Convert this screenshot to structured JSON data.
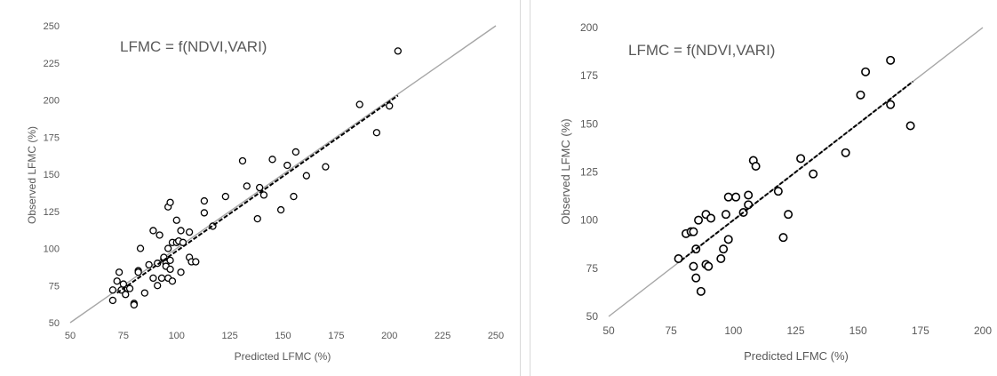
{
  "chart_data": [
    {
      "type": "scatter",
      "annotation": "LFMC = f(NDVI,VARI)",
      "xlabel": "Predicted LFMC (%)",
      "ylabel": "Observed LFMC (%)",
      "xlim": [
        50,
        250
      ],
      "ylim": [
        50,
        250
      ],
      "xticks": [
        "50",
        "75",
        "100",
        "125",
        "150",
        "175",
        "200",
        "225",
        "250"
      ],
      "yticks": [
        "50",
        "75",
        "100",
        "125",
        "150",
        "175",
        "200",
        "225",
        "250"
      ],
      "grid": false,
      "reference_line": "1:1",
      "trend_line": {
        "x": [
          72,
          204
        ],
        "y": [
          70,
          203
        ]
      },
      "points": [
        [
          70,
          72
        ],
        [
          70,
          65
        ],
        [
          72,
          78
        ],
        [
          73,
          84
        ],
        [
          74,
          72
        ],
        [
          75,
          76
        ],
        [
          76,
          69
        ],
        [
          77,
          73
        ],
        [
          78,
          73
        ],
        [
          80,
          63
        ],
        [
          80,
          62
        ],
        [
          82,
          85
        ],
        [
          82,
          84
        ],
        [
          83,
          100
        ],
        [
          85,
          70
        ],
        [
          87,
          89
        ],
        [
          89,
          112
        ],
        [
          89,
          80
        ],
        [
          91,
          75
        ],
        [
          91,
          90
        ],
        [
          92,
          109
        ],
        [
          93,
          80
        ],
        [
          94,
          93
        ],
        [
          94,
          94
        ],
        [
          95,
          90
        ],
        [
          95,
          88
        ],
        [
          96,
          128
        ],
        [
          96,
          100
        ],
        [
          96,
          80
        ],
        [
          97,
          86
        ],
        [
          97,
          131
        ],
        [
          97,
          92
        ],
        [
          98,
          78
        ],
        [
          98,
          104
        ],
        [
          100,
          119
        ],
        [
          100,
          104
        ],
        [
          101,
          105
        ],
        [
          102,
          84
        ],
        [
          102,
          112
        ],
        [
          103,
          104
        ],
        [
          106,
          111
        ],
        [
          106,
          94
        ],
        [
          107,
          91
        ],
        [
          109,
          91
        ],
        [
          113,
          132
        ],
        [
          113,
          124
        ],
        [
          117,
          115
        ],
        [
          123,
          135
        ],
        [
          131,
          159
        ],
        [
          133,
          142
        ],
        [
          138,
          120
        ],
        [
          139,
          141
        ],
        [
          141,
          136
        ],
        [
          145,
          160
        ],
        [
          149,
          126
        ],
        [
          152,
          156
        ],
        [
          155,
          135
        ],
        [
          156,
          165
        ],
        [
          161,
          149
        ],
        [
          170,
          155
        ],
        [
          186,
          197
        ],
        [
          194,
          178
        ],
        [
          200,
          196
        ],
        [
          204,
          233
        ]
      ]
    },
    {
      "type": "scatter",
      "annotation": "LFMC = f(NDVI,VARI)",
      "xlabel": "Predicted LFMC (%)",
      "ylabel": "Observed LFMC (%)",
      "xlim": [
        50,
        200
      ],
      "ylim": [
        50,
        200
      ],
      "xticks": [
        "50",
        "75",
        "100",
        "125",
        "150",
        "175",
        "200"
      ],
      "yticks": [
        "50",
        "75",
        "100",
        "125",
        "150",
        "175",
        "200"
      ],
      "grid": false,
      "reference_line": "1:1",
      "trend_line": {
        "x": [
          79,
          172
        ],
        "y": [
          79,
          172
        ]
      },
      "points": [
        [
          78,
          80
        ],
        [
          81,
          93
        ],
        [
          83,
          94
        ],
        [
          84,
          94
        ],
        [
          84,
          76
        ],
        [
          85,
          70
        ],
        [
          85,
          85
        ],
        [
          86,
          100
        ],
        [
          87,
          63
        ],
        [
          89,
          77
        ],
        [
          89,
          103
        ],
        [
          90,
          76
        ],
        [
          91,
          101
        ],
        [
          95,
          80
        ],
        [
          96,
          85
        ],
        [
          97,
          103
        ],
        [
          98,
          112
        ],
        [
          98,
          90
        ],
        [
          101,
          112
        ],
        [
          104,
          104
        ],
        [
          106,
          108
        ],
        [
          106,
          113
        ],
        [
          108,
          131
        ],
        [
          109,
          128
        ],
        [
          118,
          115
        ],
        [
          120,
          91
        ],
        [
          122,
          103
        ],
        [
          127,
          132
        ],
        [
          132,
          124
        ],
        [
          145,
          135
        ],
        [
          151,
          165
        ],
        [
          153,
          177
        ],
        [
          163,
          160
        ],
        [
          163,
          183
        ],
        [
          171,
          149
        ]
      ]
    }
  ]
}
